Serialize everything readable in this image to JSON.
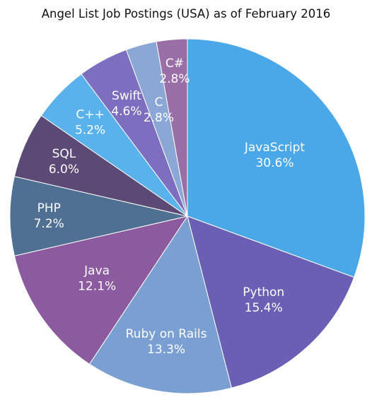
{
  "chart_data": {
    "type": "pie",
    "title": "Angel List Job Postings (USA) as of February 2016",
    "slices": [
      {
        "name": "JavaScript",
        "value": 30.6,
        "label": "30.6%",
        "color": "#4aa8e8"
      },
      {
        "name": "Python",
        "value": 15.4,
        "label": "15.4%",
        "color": "#6a5fb4"
      },
      {
        "name": "Ruby on Rails",
        "value": 13.3,
        "label": "13.3%",
        "color": "#7a9fd2"
      },
      {
        "name": "Java",
        "value": 12.1,
        "label": "12.1%",
        "color": "#8c5a9e"
      },
      {
        "name": "PHP",
        "value": 7.2,
        "label": "7.2%",
        "color": "#4f6f93"
      },
      {
        "name": "SQL",
        "value": 6.0,
        "label": "6.0%",
        "color": "#5c4a76"
      },
      {
        "name": "C++",
        "value": 5.2,
        "label": "5.2%",
        "color": "#5ab2ec"
      },
      {
        "name": "Swift",
        "value": 4.6,
        "label": "4.6%",
        "color": "#7d6ebf"
      },
      {
        "name": "C",
        "value": 2.8,
        "label": "2.8%",
        "color": "#8aa7d6"
      },
      {
        "name": "C#",
        "value": 2.8,
        "label": "2.8%",
        "color": "#9a6fa8"
      }
    ]
  }
}
